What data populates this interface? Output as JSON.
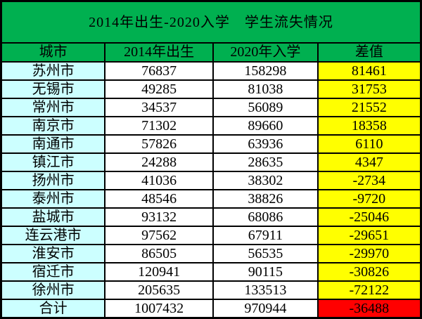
{
  "title": "2014年出生-2020入学　学生流失情况",
  "colors": {
    "header_green": "#00B050",
    "city_cyan": "#CCFFFF",
    "diff_yellow": "#FFFF00",
    "total_red": "#FF0000",
    "row_white": "#FFFFFF",
    "border_black": "#000000"
  },
  "table": {
    "headers": [
      "城市",
      "2014年出生",
      "2020年入学",
      "差值"
    ],
    "rows": [
      {
        "city": "苏州市",
        "born_2014": "76837",
        "enroll_2020": "158298",
        "diff": "81461"
      },
      {
        "city": "无锡市",
        "born_2014": "49285",
        "enroll_2020": "81038",
        "diff": "31753"
      },
      {
        "city": "常州市",
        "born_2014": "34537",
        "enroll_2020": "56089",
        "diff": "21552"
      },
      {
        "city": "南京市",
        "born_2014": "71302",
        "enroll_2020": "89660",
        "diff": "18358"
      },
      {
        "city": "南通市",
        "born_2014": "57826",
        "enroll_2020": "63936",
        "diff": "6110"
      },
      {
        "city": "镇江市",
        "born_2014": "24288",
        "enroll_2020": "28635",
        "diff": "4347"
      },
      {
        "city": "扬州市",
        "born_2014": "41036",
        "enroll_2020": "38302",
        "diff": "-2734"
      },
      {
        "city": "泰州市",
        "born_2014": "48546",
        "enroll_2020": "38826",
        "diff": "-9720"
      },
      {
        "city": "盐城市",
        "born_2014": "93132",
        "enroll_2020": "68086",
        "diff": "-25046"
      },
      {
        "city": "连云港市",
        "born_2014": "97562",
        "enroll_2020": "67911",
        "diff": "-29651"
      },
      {
        "city": "淮安市",
        "born_2014": "86505",
        "enroll_2020": "56535",
        "diff": "-29970"
      },
      {
        "city": "宿迁市",
        "born_2014": "120941",
        "enroll_2020": "90115",
        "diff": "-30826"
      },
      {
        "city": "徐州市",
        "born_2014": "205635",
        "enroll_2020": "133513",
        "diff": "-72122"
      }
    ],
    "total": {
      "city": "合计",
      "born_2014": "1007432",
      "enroll_2020": "970944",
      "diff": "-36488"
    }
  },
  "chart_data": {
    "type": "table",
    "title": "2014年出生-2020入学　学生流失情况",
    "columns": [
      "城市",
      "2014年出生",
      "2020年入学",
      "差值"
    ],
    "rows": [
      [
        "苏州市",
        76837,
        158298,
        81461
      ],
      [
        "无锡市",
        49285,
        81038,
        31753
      ],
      [
        "常州市",
        34537,
        56089,
        21552
      ],
      [
        "南京市",
        71302,
        89660,
        18358
      ],
      [
        "南通市",
        57826,
        63936,
        6110
      ],
      [
        "镇江市",
        24288,
        28635,
        4347
      ],
      [
        "扬州市",
        41036,
        38302,
        -2734
      ],
      [
        "泰州市",
        48546,
        38826,
        -9720
      ],
      [
        "盐城市",
        93132,
        68086,
        -25046
      ],
      [
        "连云港市",
        97562,
        67911,
        -29651
      ],
      [
        "淮安市",
        86505,
        56535,
        -29970
      ],
      [
        "宿迁市",
        120941,
        90115,
        -30826
      ],
      [
        "徐州市",
        205635,
        133513,
        -72122
      ],
      [
        "合计",
        1007432,
        970944,
        -36488
      ]
    ],
    "notes": {
      "positive_diff_background": "#FFFF00",
      "negative_total_background": "#FF0000",
      "city_column_background": "#CCFFFF",
      "header_background": "#00B050"
    }
  }
}
